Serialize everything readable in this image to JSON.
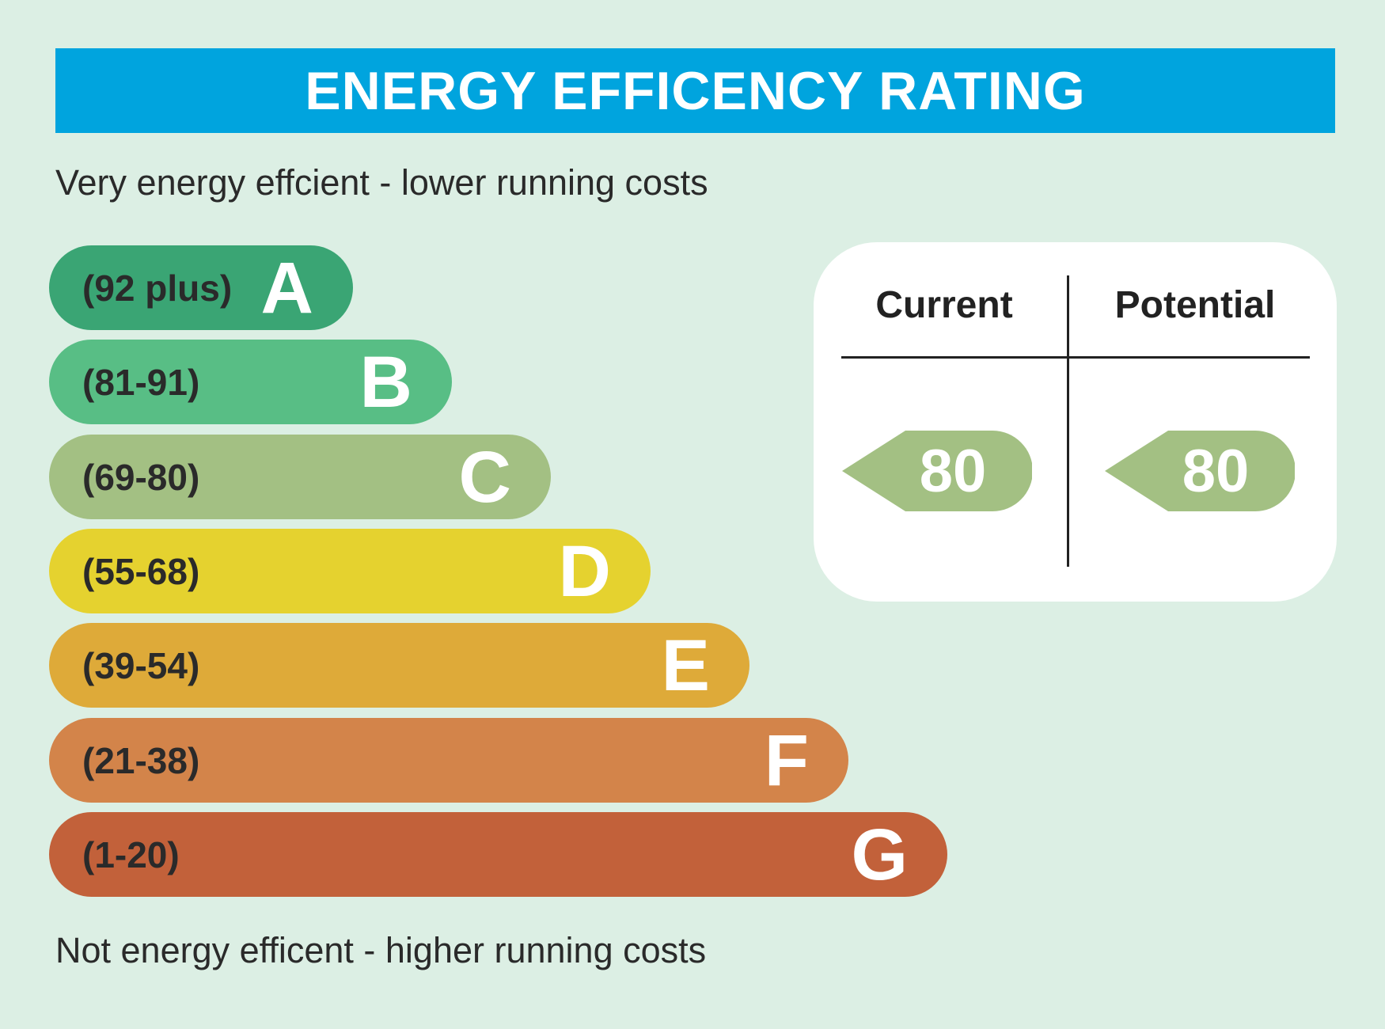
{
  "title": "ENERGY EFFICENCY RATING",
  "caption_top": "Very energy effcient - lower running costs",
  "caption_bottom": "Not energy efficent - higher running costs",
  "panel": {
    "current_label": "Current",
    "potential_label": "Potential",
    "current_value": "80",
    "potential_value": "80",
    "arrow_color": "#a3c083"
  },
  "chart_data": {
    "type": "bar",
    "categories": [
      "A",
      "B",
      "C",
      "D",
      "E",
      "F",
      "G"
    ],
    "ranges": [
      "(92 plus)",
      "(81-91)",
      "(69-80)",
      "(55-68)",
      "(39-54)",
      "(21-38)",
      "(1-20)"
    ],
    "colors": [
      "#3aa574",
      "#58be85",
      "#a3c083",
      "#e5d22f",
      "#deaa39",
      "#d3844a",
      "#c2613a"
    ],
    "current": 80,
    "potential": 80
  }
}
